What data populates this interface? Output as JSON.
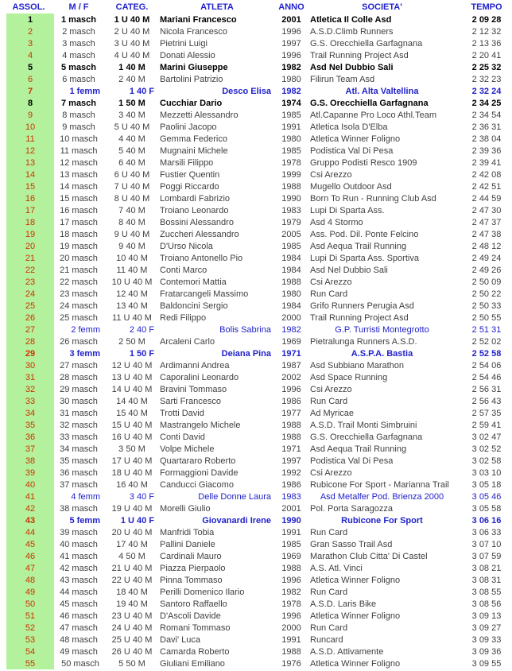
{
  "colors": {
    "header_text": "#2222cc",
    "position_text": "#cc3300",
    "position_bg": "#b4f19c",
    "female_text": "#2222cc",
    "male_text": "#3f3f3f",
    "male_bold_text": "#000000"
  },
  "table": {
    "headers": [
      "ASSOL.",
      "M / F",
      "CATEG.",
      "ATLETA",
      "ANNO",
      "SOCIETA'",
      "TEMPO"
    ],
    "rows": [
      {
        "assol": "1",
        "mf": "1 masch",
        "categ": "1 U 40 M",
        "atleta": "Mariani Francesco",
        "anno": "2001",
        "societa": "Atletica Il Colle Asd",
        "tempo": "2 09 28",
        "gender": "m",
        "bold": true
      },
      {
        "assol": "2",
        "mf": "2 masch",
        "categ": "2 U 40 M",
        "atleta": "Nicola Francesco",
        "anno": "1996",
        "societa": "A.S.D.Climb Runners",
        "tempo": "2 12 32",
        "gender": "m",
        "bold": false
      },
      {
        "assol": "3",
        "mf": "3 masch",
        "categ": "3 U 40 M",
        "atleta": "Pietrini Luigi",
        "anno": "1997",
        "societa": "G.S. Orecchiella Garfagnana",
        "tempo": "2 13 36",
        "gender": "m",
        "bold": false
      },
      {
        "assol": "4",
        "mf": "4 masch",
        "categ": "4 U 40 M",
        "atleta": "Donati Alessio",
        "anno": "1996",
        "societa": "Trail Running Project Asd",
        "tempo": "2 20 41",
        "gender": "m",
        "bold": false
      },
      {
        "assol": "5",
        "mf": "5 masch",
        "categ": "1 40 M",
        "atleta": "Marini Giuseppe",
        "anno": "1982",
        "societa": "Asd Nel Dubbio Sali",
        "tempo": "2 25 32",
        "gender": "m",
        "bold": true
      },
      {
        "assol": "6",
        "mf": "6 masch",
        "categ": "2 40 M",
        "atleta": "Bartolini Patrizio",
        "anno": "1980",
        "societa": "Filirun Team Asd",
        "tempo": "2 32 23",
        "gender": "m",
        "bold": false
      },
      {
        "assol": "7",
        "mf": "1 femm",
        "categ": "1 40 F",
        "atleta": "Desco Elisa",
        "anno": "1982",
        "societa": "Atl. Alta Valtellina",
        "tempo": "2 32 24",
        "gender": "f",
        "bold": true
      },
      {
        "assol": "8",
        "mf": "7 masch",
        "categ": "1 50 M",
        "atleta": "Cucchiar Dario",
        "anno": "1974",
        "societa": "G.S. Orecchiella Garfagnana",
        "tempo": "2 34 25",
        "gender": "m",
        "bold": true
      },
      {
        "assol": "9",
        "mf": "8 masch",
        "categ": "3 40 M",
        "atleta": "Mezzetti Alessandro",
        "anno": "1985",
        "societa": "Atl.Capanne Pro Loco Athl.Team",
        "tempo": "2 34 54",
        "gender": "m",
        "bold": false
      },
      {
        "assol": "10",
        "mf": "9 masch",
        "categ": "5 U 40 M",
        "atleta": "Paolini Jacopo",
        "anno": "1991",
        "societa": "Atletica Isola D'Elba",
        "tempo": "2 36 31",
        "gender": "m",
        "bold": false
      },
      {
        "assol": "11",
        "mf": "10 masch",
        "categ": "4 40 M",
        "atleta": "Gemma Federico",
        "anno": "1980",
        "societa": "Atletica Winner Foligno",
        "tempo": "2 38 04",
        "gender": "m",
        "bold": false
      },
      {
        "assol": "12",
        "mf": "11 masch",
        "categ": "5 40 M",
        "atleta": "Mugnaini Michele",
        "anno": "1985",
        "societa": "Podistica Val Di Pesa",
        "tempo": "2 39 36",
        "gender": "m",
        "bold": false
      },
      {
        "assol": "13",
        "mf": "12 masch",
        "categ": "6 40 M",
        "atleta": "Marsili Filippo",
        "anno": "1978",
        "societa": "Gruppo Podisti Resco 1909",
        "tempo": "2 39 41",
        "gender": "m",
        "bold": false
      },
      {
        "assol": "14",
        "mf": "13 masch",
        "categ": "6 U 40 M",
        "atleta": "Fustier Quentin",
        "anno": "1999",
        "societa": "Csi Arezzo",
        "tempo": "2 42 08",
        "gender": "m",
        "bold": false
      },
      {
        "assol": "15",
        "mf": "14 masch",
        "categ": "7 U 40 M",
        "atleta": "Poggi Riccardo",
        "anno": "1988",
        "societa": "Mugello Outdoor Asd",
        "tempo": "2 42 51",
        "gender": "m",
        "bold": false
      },
      {
        "assol": "16",
        "mf": "15 masch",
        "categ": "8 U 40 M",
        "atleta": "Lombardi Fabrizio",
        "anno": "1990",
        "societa": "Born To Run - Running Club Asd",
        "tempo": "2 44 59",
        "gender": "m",
        "bold": false
      },
      {
        "assol": "17",
        "mf": "16 masch",
        "categ": "7 40 M",
        "atleta": "Troiano Leonardo",
        "anno": "1983",
        "societa": "Lupi Di Sparta Ass.",
        "tempo": "2 47 30",
        "gender": "m",
        "bold": false
      },
      {
        "assol": "18",
        "mf": "17 masch",
        "categ": "8 40 M",
        "atleta": "Bossini Alessandro",
        "anno": "1979",
        "societa": "Asd 4 Stormo",
        "tempo": "2 47 37",
        "gender": "m",
        "bold": false
      },
      {
        "assol": "19",
        "mf": "18 masch",
        "categ": "9 U 40 M",
        "atleta": "Zuccheri Alessandro",
        "anno": "2005",
        "societa": "Ass. Pod. Dil. Ponte Felcino",
        "tempo": "2 47 38",
        "gender": "m",
        "bold": false
      },
      {
        "assol": "20",
        "mf": "19 masch",
        "categ": "9 40 M",
        "atleta": "D'Urso Nicola",
        "anno": "1985",
        "societa": "Asd Aequa Trail Running",
        "tempo": "2 48 12",
        "gender": "m",
        "bold": false
      },
      {
        "assol": "21",
        "mf": "20 masch",
        "categ": "10 40 M",
        "atleta": "Troiano Antonello Pio",
        "anno": "1984",
        "societa": "Lupi Di Sparta Ass. Sportiva",
        "tempo": "2 49 24",
        "gender": "m",
        "bold": false
      },
      {
        "assol": "22",
        "mf": "21 masch",
        "categ": "11 40 M",
        "atleta": "Conti Marco",
        "anno": "1984",
        "societa": "Asd Nel Dubbio Sali",
        "tempo": "2 49 26",
        "gender": "m",
        "bold": false
      },
      {
        "assol": "23",
        "mf": "22 masch",
        "categ": "10 U 40 M",
        "atleta": "Contemori Mattia",
        "anno": "1988",
        "societa": "Csi Arezzo",
        "tempo": "2 50 09",
        "gender": "m",
        "bold": false
      },
      {
        "assol": "24",
        "mf": "23 masch",
        "categ": "12 40 M",
        "atleta": "Fratarcangeli Massimo",
        "anno": "1980",
        "societa": "Run Card",
        "tempo": "2 50 22",
        "gender": "m",
        "bold": false
      },
      {
        "assol": "25",
        "mf": "24 masch",
        "categ": "13 40 M",
        "atleta": "Baldoncini Sergio",
        "anno": "1984",
        "societa": "Grifo Runners Perugia Asd",
        "tempo": "2 50 33",
        "gender": "m",
        "bold": false
      },
      {
        "assol": "26",
        "mf": "25 masch",
        "categ": "11 U 40 M",
        "atleta": "Redi Filippo",
        "anno": "2000",
        "societa": "Trail Running Project Asd",
        "tempo": "2 50 55",
        "gender": "m",
        "bold": false
      },
      {
        "assol": "27",
        "mf": "2 femm",
        "categ": "2 40 F",
        "atleta": "Bolis Sabrina",
        "anno": "1982",
        "societa": "G.P. Turristi Montegrotto",
        "tempo": "2 51 31",
        "gender": "f",
        "bold": false
      },
      {
        "assol": "28",
        "mf": "26 masch",
        "categ": "2 50 M",
        "atleta": "Arcaleni Carlo",
        "anno": "1969",
        "societa": "Pietralunga Runners A.S.D.",
        "tempo": "2 52 02",
        "gender": "m",
        "bold": false
      },
      {
        "assol": "29",
        "mf": "3 femm",
        "categ": "1 50 F",
        "atleta": "Deiana Pina",
        "anno": "1971",
        "societa": "A.S.P.A. Bastia",
        "tempo": "2 52 58",
        "gender": "f",
        "bold": true
      },
      {
        "assol": "30",
        "mf": "27 masch",
        "categ": "12 U 40 M",
        "atleta": "Ardimanni Andrea",
        "anno": "1987",
        "societa": "Asd Subbiano Marathon",
        "tempo": "2 54 06",
        "gender": "m",
        "bold": false
      },
      {
        "assol": "31",
        "mf": "28 masch",
        "categ": "13 U 40 M",
        "atleta": "Caporalini Leonardo",
        "anno": "2002",
        "societa": "Asd Space Running",
        "tempo": "2 54 46",
        "gender": "m",
        "bold": false
      },
      {
        "assol": "32",
        "mf": "29 masch",
        "categ": "14 U 40 M",
        "atleta": "Bravini Tommaso",
        "anno": "1996",
        "societa": "Csi Arezzo",
        "tempo": "2 56 31",
        "gender": "m",
        "bold": false
      },
      {
        "assol": "33",
        "mf": "30 masch",
        "categ": "14 40 M",
        "atleta": "Sarti Francesco",
        "anno": "1986",
        "societa": "Run Card",
        "tempo": "2 56 43",
        "gender": "m",
        "bold": false
      },
      {
        "assol": "34",
        "mf": "31 masch",
        "categ": "15 40 M",
        "atleta": "Trotti David",
        "anno": "1977",
        "societa": "Ad Myricae",
        "tempo": "2 57 35",
        "gender": "m",
        "bold": false
      },
      {
        "assol": "35",
        "mf": "32 masch",
        "categ": "15 U 40 M",
        "atleta": "Mastrangelo Michele",
        "anno": "1988",
        "societa": "A.S.D. Trail Monti Simbruini",
        "tempo": "2 59 41",
        "gender": "m",
        "bold": false
      },
      {
        "assol": "36",
        "mf": "33 masch",
        "categ": "16 U 40 M",
        "atleta": "Conti David",
        "anno": "1988",
        "societa": "G.S. Orecchiella Garfagnana",
        "tempo": "3 02 47",
        "gender": "m",
        "bold": false
      },
      {
        "assol": "37",
        "mf": "34 masch",
        "categ": "3 50 M",
        "atleta": "Volpe Michele",
        "anno": "1971",
        "societa": "Asd Aequa Trail Running",
        "tempo": "3 02 52",
        "gender": "m",
        "bold": false
      },
      {
        "assol": "38",
        "mf": "35 masch",
        "categ": "17 U 40 M",
        "atleta": "Quartararo Roberto",
        "anno": "1997",
        "societa": "Podistica Val Di Pesa",
        "tempo": "3 02 58",
        "gender": "m",
        "bold": false
      },
      {
        "assol": "39",
        "mf": "36 masch",
        "categ": "18 U 40 M",
        "atleta": "Formaggioni Davide",
        "anno": "1992",
        "societa": "Csi Arezzo",
        "tempo": "3 03 10",
        "gender": "m",
        "bold": false
      },
      {
        "assol": "40",
        "mf": "37 masch",
        "categ": "16 40 M",
        "atleta": "Canducci Giacomo",
        "anno": "1986",
        "societa": "Rubicone For Sport - Marianna Trail",
        "tempo": "3 05 18",
        "gender": "m",
        "bold": false
      },
      {
        "assol": "41",
        "mf": "4 femm",
        "categ": "3 40 F",
        "atleta": "Delle Donne Laura",
        "anno": "1983",
        "societa": "Asd Metalfer Pod. Brienza 2000",
        "tempo": "3 05 46",
        "gender": "f",
        "bold": false
      },
      {
        "assol": "42",
        "mf": "38 masch",
        "categ": "19 U 40 M",
        "atleta": "Morelli Giulio",
        "anno": "2001",
        "societa": "Pol. Porta Saragozza",
        "tempo": "3 05 58",
        "gender": "m",
        "bold": false
      },
      {
        "assol": "43",
        "mf": "5 femm",
        "categ": "1 U 40 F",
        "atleta": "Giovanardi Irene",
        "anno": "1990",
        "societa": "Rubicone For Sport",
        "tempo": "3 06 16",
        "gender": "f",
        "bold": true
      },
      {
        "assol": "44",
        "mf": "39 masch",
        "categ": "20 U 40 M",
        "atleta": "Manfridi Tobia",
        "anno": "1991",
        "societa": "Run Card",
        "tempo": "3 06 33",
        "gender": "m",
        "bold": false
      },
      {
        "assol": "45",
        "mf": "40 masch",
        "categ": "17 40 M",
        "atleta": "Pallini Daniele",
        "anno": "1985",
        "societa": "Gran Sasso Trail Asd",
        "tempo": "3 07 10",
        "gender": "m",
        "bold": false
      },
      {
        "assol": "46",
        "mf": "41 masch",
        "categ": "4 50 M",
        "atleta": "Cardinali Mauro",
        "anno": "1969",
        "societa": "Marathon Club Citta' Di Castel",
        "tempo": "3 07 59",
        "gender": "m",
        "bold": false
      },
      {
        "assol": "47",
        "mf": "42 masch",
        "categ": "21 U 40 M",
        "atleta": "Piazza Pierpaolo",
        "anno": "1988",
        "societa": "A.S. Atl. Vinci",
        "tempo": "3 08 21",
        "gender": "m",
        "bold": false
      },
      {
        "assol": "48",
        "mf": "43 masch",
        "categ": "22 U 40 M",
        "atleta": "Pinna Tommaso",
        "anno": "1996",
        "societa": "Atletica Winner Foligno",
        "tempo": "3 08 31",
        "gender": "m",
        "bold": false
      },
      {
        "assol": "49",
        "mf": "44 masch",
        "categ": "18 40 M",
        "atleta": "Perilli Domenico Ilario",
        "anno": "1982",
        "societa": "Run Card",
        "tempo": "3 08 55",
        "gender": "m",
        "bold": false
      },
      {
        "assol": "50",
        "mf": "45 masch",
        "categ": "19 40 M",
        "atleta": "Santoro Raffaello",
        "anno": "1978",
        "societa": "A.S.D. Laris Bike",
        "tempo": "3 08 56",
        "gender": "m",
        "bold": false
      },
      {
        "assol": "51",
        "mf": "46 masch",
        "categ": "23 U 40 M",
        "atleta": "D'Ascoli Davide",
        "anno": "1996",
        "societa": "Atletica Winner Foligno",
        "tempo": "3 09 13",
        "gender": "m",
        "bold": false
      },
      {
        "assol": "52",
        "mf": "47 masch",
        "categ": "24 U 40 M",
        "atleta": "Romani Tommaso",
        "anno": "2000",
        "societa": "Run Card",
        "tempo": "3 09 27",
        "gender": "m",
        "bold": false
      },
      {
        "assol": "53",
        "mf": "48 masch",
        "categ": "25 U 40 M",
        "atleta": "Davi' Luca",
        "anno": "1991",
        "societa": "Runcard",
        "tempo": "3 09 33",
        "gender": "m",
        "bold": false
      },
      {
        "assol": "54",
        "mf": "49 masch",
        "categ": "26 U 40 M",
        "atleta": "Camarda Roberto",
        "anno": "1988",
        "societa": "A.S.D. Attivamente",
        "tempo": "3 09 36",
        "gender": "m",
        "bold": false
      },
      {
        "assol": "55",
        "mf": "50 masch",
        "categ": "5 50 M",
        "atleta": "Giuliani Emiliano",
        "anno": "1976",
        "societa": "Atletica Winner Foligno",
        "tempo": "3 09 55",
        "gender": "m",
        "bold": false
      }
    ]
  }
}
